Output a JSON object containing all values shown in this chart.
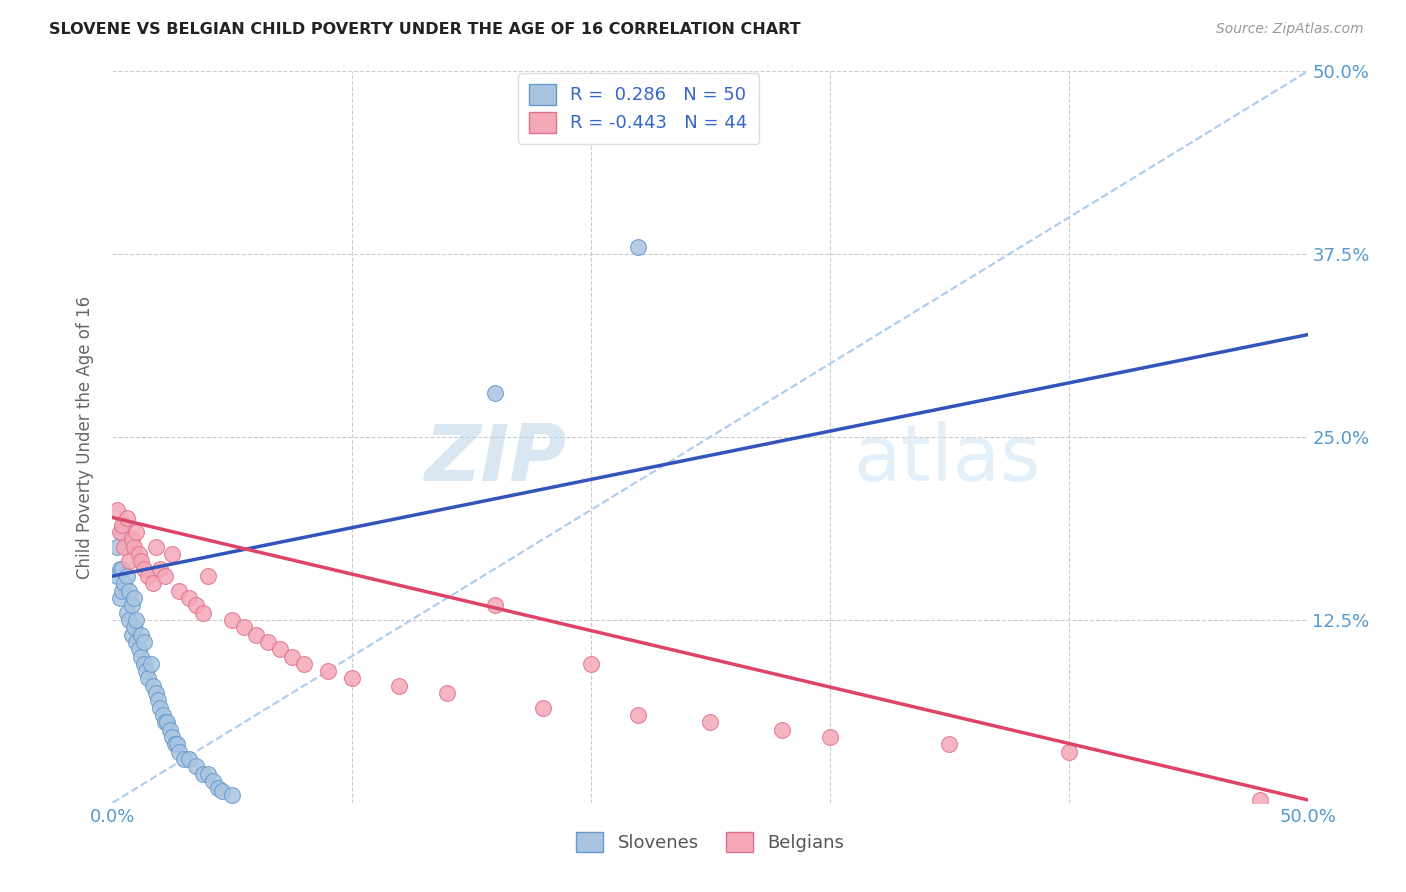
{
  "title": "SLOVENE VS BELGIAN CHILD POVERTY UNDER THE AGE OF 16 CORRELATION CHART",
  "source": "Source: ZipAtlas.com",
  "ylabel": "Child Poverty Under the Age of 16",
  "xlim": [
    0,
    0.5
  ],
  "ylim": [
    0,
    0.5
  ],
  "xticks": [
    0.0,
    0.1,
    0.2,
    0.3,
    0.4,
    0.5
  ],
  "yticks": [
    0.0,
    0.125,
    0.25,
    0.375,
    0.5
  ],
  "slovene_color": "#a8c4e0",
  "belgian_color": "#f4a8b8",
  "slovene_edge_color": "#6699cc",
  "belgian_edge_color": "#e07090",
  "trend_slovene_color": "#3355bb",
  "trend_belgian_color": "#dd4466",
  "dashed_line_color": "#aaccee",
  "legend_R_slovene": "0.286",
  "legend_N_slovene": "50",
  "legend_R_belgian": "-0.443",
  "legend_N_belgian": "44",
  "slovene_x": [
    0.002,
    0.002,
    0.003,
    0.003,
    0.004,
    0.004,
    0.004,
    0.005,
    0.005,
    0.006,
    0.006,
    0.007,
    0.007,
    0.008,
    0.008,
    0.009,
    0.009,
    0.01,
    0.01,
    0.011,
    0.012,
    0.012,
    0.013,
    0.013,
    0.014,
    0.015,
    0.016,
    0.017,
    0.018,
    0.019,
    0.02,
    0.021,
    0.022,
    0.023,
    0.024,
    0.025,
    0.026,
    0.027,
    0.028,
    0.03,
    0.032,
    0.035,
    0.038,
    0.04,
    0.042,
    0.044,
    0.046,
    0.05,
    0.16,
    0.22
  ],
  "slovene_y": [
    0.155,
    0.175,
    0.14,
    0.16,
    0.145,
    0.16,
    0.185,
    0.15,
    0.19,
    0.13,
    0.155,
    0.125,
    0.145,
    0.115,
    0.135,
    0.12,
    0.14,
    0.11,
    0.125,
    0.105,
    0.1,
    0.115,
    0.095,
    0.11,
    0.09,
    0.085,
    0.095,
    0.08,
    0.075,
    0.07,
    0.065,
    0.06,
    0.055,
    0.055,
    0.05,
    0.045,
    0.04,
    0.04,
    0.035,
    0.03,
    0.03,
    0.025,
    0.02,
    0.02,
    0.015,
    0.01,
    0.008,
    0.005,
    0.28,
    0.38
  ],
  "belgian_x": [
    0.002,
    0.003,
    0.004,
    0.005,
    0.006,
    0.007,
    0.008,
    0.009,
    0.01,
    0.011,
    0.012,
    0.013,
    0.015,
    0.017,
    0.018,
    0.02,
    0.022,
    0.025,
    0.028,
    0.032,
    0.035,
    0.038,
    0.04,
    0.05,
    0.055,
    0.06,
    0.065,
    0.07,
    0.075,
    0.08,
    0.09,
    0.1,
    0.12,
    0.14,
    0.16,
    0.18,
    0.2,
    0.22,
    0.25,
    0.28,
    0.3,
    0.35,
    0.4,
    0.48
  ],
  "belgian_y": [
    0.2,
    0.185,
    0.19,
    0.175,
    0.195,
    0.165,
    0.18,
    0.175,
    0.185,
    0.17,
    0.165,
    0.16,
    0.155,
    0.15,
    0.175,
    0.16,
    0.155,
    0.17,
    0.145,
    0.14,
    0.135,
    0.13,
    0.155,
    0.125,
    0.12,
    0.115,
    0.11,
    0.105,
    0.1,
    0.095,
    0.09,
    0.085,
    0.08,
    0.075,
    0.135,
    0.065,
    0.095,
    0.06,
    0.055,
    0.05,
    0.045,
    0.04,
    0.035,
    0.002
  ],
  "slovene_trend_x0": 0.0,
  "slovene_trend_y0": 0.155,
  "slovene_trend_x1": 0.5,
  "slovene_trend_y1": 0.32,
  "belgian_trend_x0": 0.0,
  "belgian_trend_y0": 0.195,
  "belgian_trend_x1": 0.5,
  "belgian_trend_y1": 0.002,
  "background_color": "#ffffff",
  "grid_color": "#cccccc",
  "watermark_color": "#cce4f5",
  "axis_color": "#5599cc"
}
